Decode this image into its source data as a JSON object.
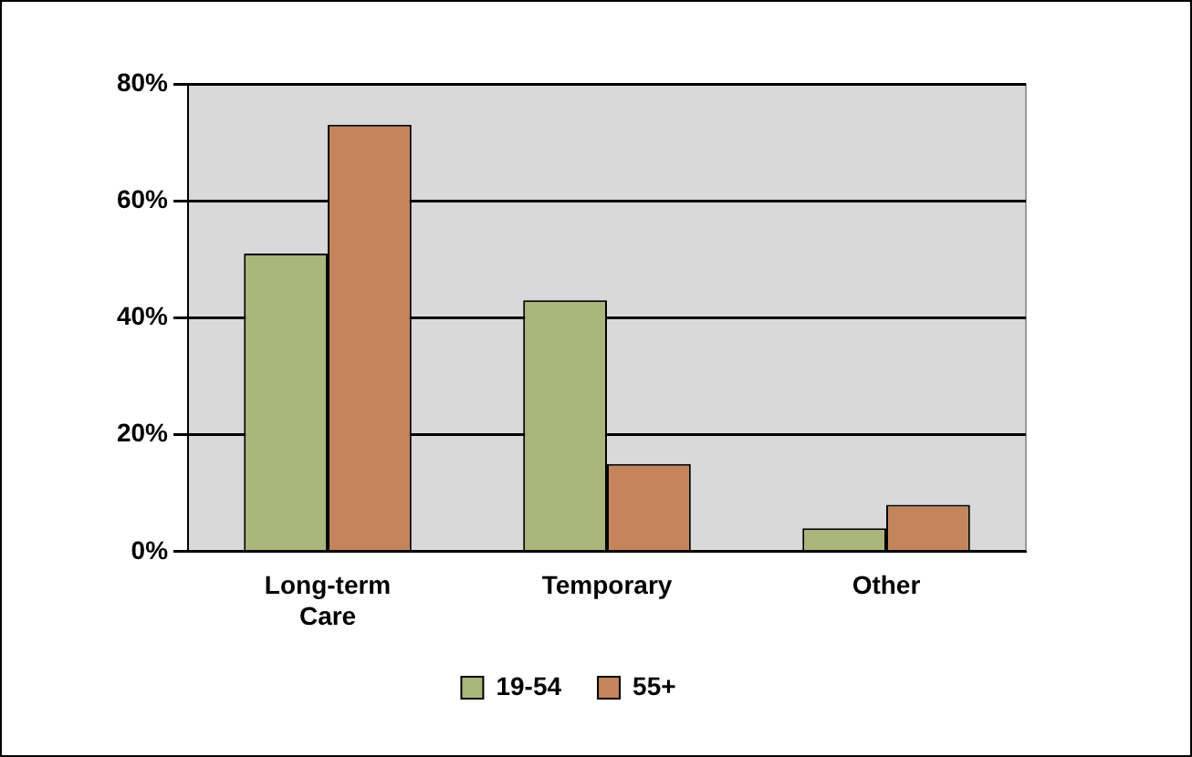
{
  "chart_data": {
    "type": "bar",
    "categories": [
      "Long-term Care",
      "Temporary",
      "Other"
    ],
    "series": [
      {
        "name": "19-54",
        "color": "#a9b57a",
        "values": [
          51,
          43,
          4
        ]
      },
      {
        "name": "55+",
        "color": "#c4845c",
        "values": [
          73,
          15,
          8
        ]
      }
    ],
    "ylim": [
      0,
      80
    ],
    "yticks": [
      {
        "value": 0,
        "label": "0%"
      },
      {
        "value": 20,
        "label": "20%"
      },
      {
        "value": 40,
        "label": "40%"
      },
      {
        "value": 60,
        "label": "60%"
      },
      {
        "value": 80,
        "label": "80%"
      }
    ],
    "grid": "y",
    "legend": "bottom"
  }
}
